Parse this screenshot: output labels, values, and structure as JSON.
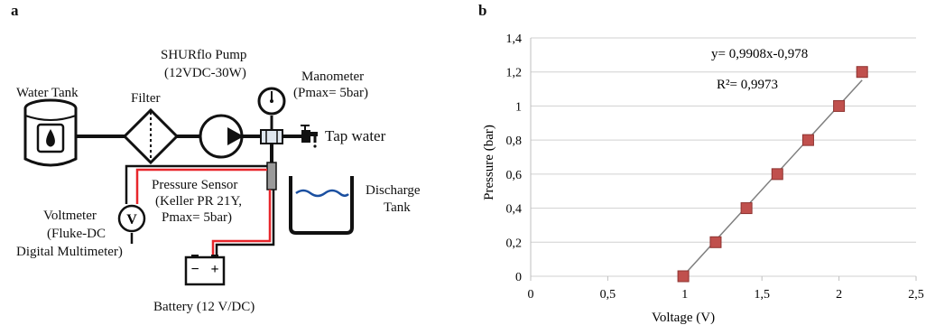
{
  "panel_a": {
    "letter": "a",
    "water_tank": "Water Tank",
    "filter": "Filter",
    "pump": [
      "SHURflo Pump",
      "(12VDC-30W)"
    ],
    "manometer": [
      "Manometer",
      "(Pmax= 5bar)"
    ],
    "tap_water": "Tap water",
    "pressure_sensor": [
      "Pressure Sensor",
      "(Keller PR 21Y,",
      "Pmax= 5bar)"
    ],
    "discharge_tank": [
      "Discharge",
      "Tank"
    ],
    "voltmeter": [
      "Voltmeter",
      "(Fluke-DC",
      "Digital Multimeter)"
    ],
    "voltmeter_symbol": "V",
    "battery": "Battery (12 V/DC)",
    "battery_minus": "−",
    "battery_plus": "+",
    "colors": {
      "wire_red": "#e8262b",
      "pipe": "#111111",
      "water": "#1a4fa0"
    }
  },
  "panel_b": {
    "letter": "b",
    "equation": "y= 0,9908x-0,978",
    "r_squared": "R²= 0,9973"
  },
  "chart_data": {
    "type": "scatter",
    "xlabel": "Voltage (V)",
    "ylabel": "Pressure (bar)",
    "xlim": [
      0,
      2.5
    ],
    "ylim": [
      0,
      1.4
    ],
    "x_ticks": [
      0,
      0.5,
      1,
      1.5,
      2,
      2.5
    ],
    "x_tick_labels": [
      "0",
      "0,5",
      "1",
      "1,5",
      "2",
      "2,5"
    ],
    "y_ticks": [
      0,
      0.2,
      0.4,
      0.6,
      0.8,
      1.0,
      1.2,
      1.4
    ],
    "y_tick_labels": [
      "0",
      "0,2",
      "0,4",
      "0,6",
      "0,8",
      "1",
      "1,2",
      "1,4"
    ],
    "grid": "horizontal",
    "series": [
      {
        "x": [
          0.99,
          1.2,
          1.4,
          1.6,
          1.8,
          2.0,
          2.15
        ],
        "y": [
          0,
          0.2,
          0.4,
          0.6,
          0.8,
          1.0,
          1.2
        ],
        "marker": "square",
        "color": "#c0504d"
      }
    ],
    "trendline": {
      "slope": 0.9908,
      "intercept": -0.978,
      "x_range": [
        0.99,
        2.15
      ],
      "color": "#7f7f7f"
    }
  }
}
